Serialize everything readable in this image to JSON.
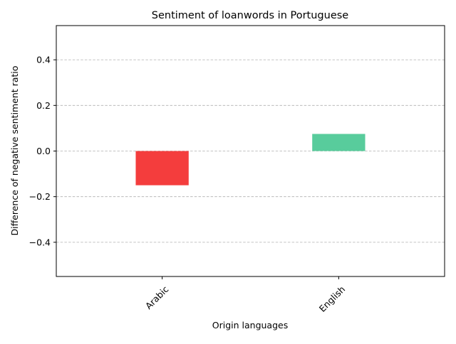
{
  "chart_data": {
    "type": "bar",
    "title": "Sentiment of loanwords in Portuguese",
    "xlabel": "Origin languages",
    "ylabel": "Difference of negative sentiment ratio",
    "categories": [
      "Arabic",
      "English"
    ],
    "values": [
      -0.15,
      0.075
    ],
    "bar_colors": [
      "#f43d3d",
      "#58cc9c"
    ],
    "ylim": [
      -0.55,
      0.55
    ],
    "yticks": [
      -0.4,
      -0.2,
      0.0,
      0.2,
      0.4
    ],
    "ytick_labels": [
      "−0.4",
      "−0.2",
      "0.0",
      "0.2",
      "0.4"
    ],
    "grid": "y-dashed",
    "xtick_rotation": 45
  }
}
